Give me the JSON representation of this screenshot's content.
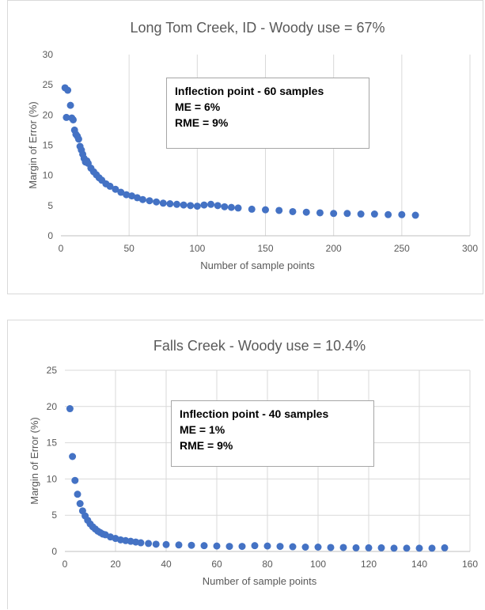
{
  "chart_data": [
    {
      "type": "scatter",
      "title": "Long Tom Creek, ID - Woody use = 67%",
      "xlabel": "Number of sample points",
      "ylabel": "Margin of Error (%)",
      "xlim": [
        0,
        300
      ],
      "ylim": [
        0,
        30
      ],
      "xticks": [
        "0",
        "50",
        "100",
        "150",
        "200",
        "250",
        "300"
      ],
      "yticks": [
        "0",
        "5",
        "10",
        "15",
        "20",
        "25",
        "30"
      ],
      "grid": "vertical",
      "marker_color": "#4472c4",
      "annotation": [
        "Inflection point - 60 samples",
        "ME = 6%",
        "RME = 9%"
      ],
      "points": {
        "x": [
          3,
          4,
          5,
          7,
          8,
          9,
          10,
          11,
          12,
          13,
          14,
          15,
          16,
          17,
          18,
          19,
          20,
          22,
          24,
          26,
          28,
          30,
          33,
          36,
          40,
          44,
          48,
          52,
          56,
          60,
          65,
          70,
          75,
          80,
          85,
          90,
          95,
          100,
          105,
          110,
          115,
          120,
          125,
          130,
          140,
          150,
          160,
          170,
          180,
          190,
          200,
          210,
          220,
          230,
          240,
          250,
          260
        ],
        "y": [
          24.5,
          19.6,
          24.1,
          21.6,
          19.5,
          19.2,
          17.5,
          16.8,
          16.5,
          16.0,
          14.8,
          14.2,
          13.5,
          12.8,
          12.2,
          12.4,
          12.0,
          11.2,
          10.6,
          10.1,
          9.6,
          9.2,
          8.6,
          8.2,
          7.7,
          7.2,
          6.8,
          6.6,
          6.3,
          6.0,
          5.8,
          5.6,
          5.4,
          5.3,
          5.2,
          5.1,
          5.0,
          4.9,
          5.1,
          5.2,
          5.0,
          4.8,
          4.7,
          4.6,
          4.4,
          4.3,
          4.2,
          4.0,
          3.9,
          3.8,
          3.7,
          3.7,
          3.6,
          3.6,
          3.5,
          3.5,
          3.4
        ]
      }
    },
    {
      "type": "scatter",
      "title": "Falls Creek - Woody use = 10.4%",
      "xlabel": "Number of sample points",
      "ylabel": "Margin of Error (%)",
      "xlim": [
        0,
        160
      ],
      "ylim": [
        0,
        25
      ],
      "xticks": [
        "0",
        "20",
        "40",
        "60",
        "80",
        "100",
        "120",
        "140",
        "160"
      ],
      "yticks": [
        "0",
        "5",
        "10",
        "15",
        "20",
        "25"
      ],
      "grid": "both",
      "marker_color": "#4472c4",
      "annotation": [
        "Inflection point - 40 samples",
        "ME = 1%",
        "RME = 9%"
      ],
      "points": {
        "x": [
          2,
          3,
          4,
          5,
          6,
          7,
          8,
          9,
          10,
          11,
          12,
          13,
          14,
          15,
          16,
          18,
          20,
          22,
          24,
          26,
          28,
          30,
          33,
          36,
          40,
          45,
          50,
          55,
          60,
          65,
          70,
          75,
          80,
          85,
          90,
          95,
          100,
          105,
          110,
          115,
          120,
          125,
          130,
          135,
          140,
          145,
          150
        ],
        "y": [
          19.7,
          13.1,
          9.8,
          7.9,
          6.6,
          5.6,
          4.9,
          4.3,
          3.8,
          3.4,
          3.1,
          2.8,
          2.6,
          2.4,
          2.3,
          2.0,
          1.8,
          1.6,
          1.5,
          1.4,
          1.3,
          1.2,
          1.1,
          1.0,
          0.95,
          0.9,
          0.85,
          0.8,
          0.75,
          0.7,
          0.7,
          0.8,
          0.75,
          0.7,
          0.65,
          0.6,
          0.6,
          0.55,
          0.55,
          0.5,
          0.5,
          0.5,
          0.45,
          0.45,
          0.45,
          0.45,
          0.5
        ]
      }
    }
  ]
}
